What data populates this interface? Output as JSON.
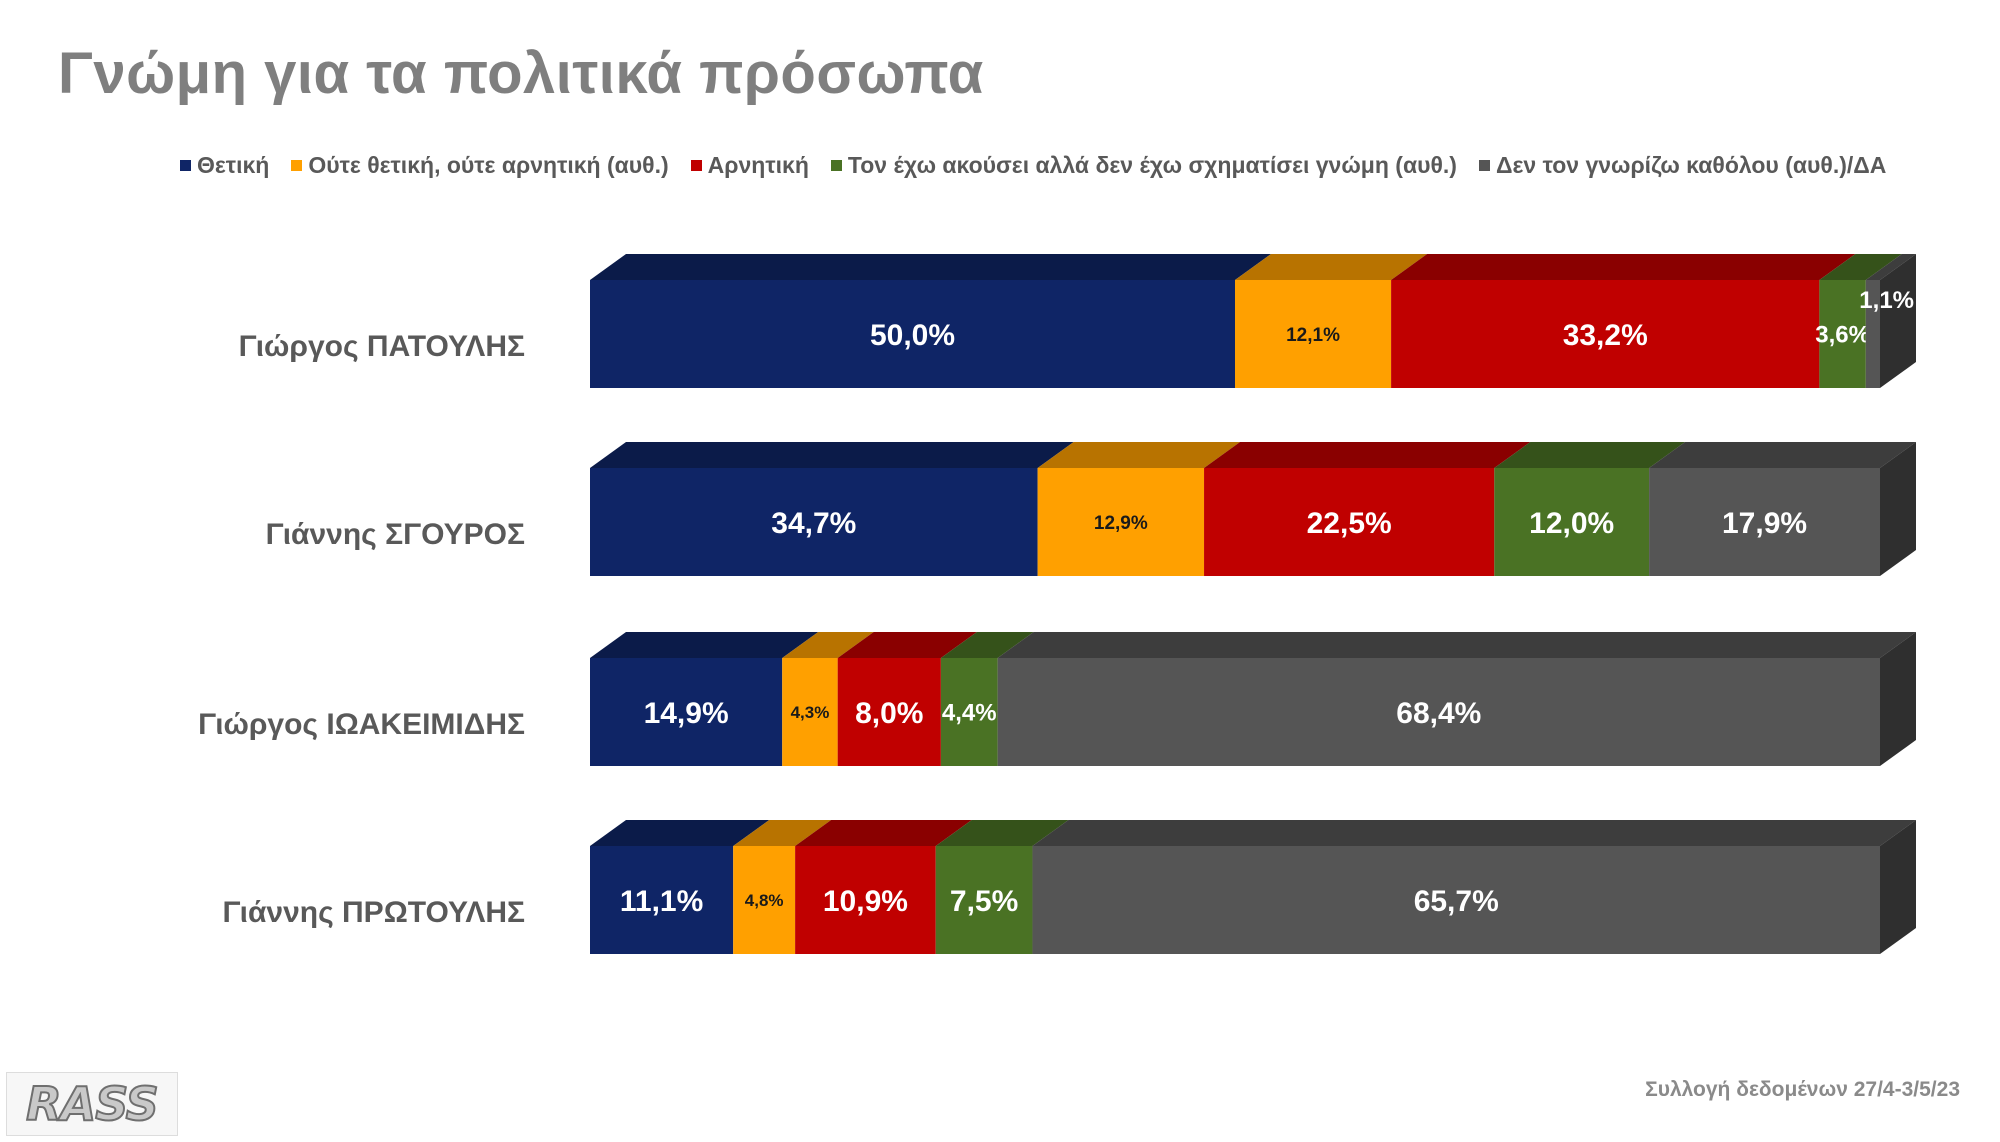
{
  "chart_data": {
    "type": "bar",
    "orientation": "horizontal",
    "stacked": true,
    "title": "Γνώμη για τα πολιτικά πρόσωπα",
    "legend_position": "top",
    "categories": [
      "Γιώργος ΠΑΤΟΥΛΗΣ",
      "Γιάννης ΣΓΟΥΡΟΣ",
      "Γιώργος ΙΩΑΚΕΙΜΙΔΗΣ",
      "Γιάννης ΠΡΩΤΟΥΛΗΣ"
    ],
    "series": [
      {
        "name": "Θετική",
        "color": "#0f2566",
        "values": [
          50.0,
          34.7,
          14.9,
          11.1
        ],
        "labels": [
          "50,0%",
          "34,7%",
          "14,9%",
          "11,1%"
        ]
      },
      {
        "name": "Ούτε θετική, ούτε αρνητική (αυθ.)",
        "color": "#ffa000",
        "values": [
          12.1,
          12.9,
          4.3,
          4.8
        ],
        "labels": [
          "12,1%",
          "12,9%",
          "4,3%",
          "4,8%"
        ]
      },
      {
        "name": "Αρνητική",
        "color": "#c00000",
        "values": [
          33.2,
          22.5,
          8.0,
          10.9
        ],
        "labels": [
          "33,2%",
          "22,5%",
          "8,0%",
          "10,9%"
        ]
      },
      {
        "name": "Τον έχω ακούσει αλλά δεν έχω σχηματίσει γνώμη (αυθ.)",
        "color": "#4a7224",
        "values": [
          3.6,
          12.0,
          4.4,
          7.5
        ],
        "labels": [
          "3,6%",
          "12,0%",
          "4,4%",
          "7,5%"
        ]
      },
      {
        "name": "Δεν τον γνωρίζω καθόλου (αυθ.)/ΔΑ",
        "color": "#555555",
        "values": [
          1.1,
          17.9,
          68.4,
          65.7
        ],
        "labels": [
          "1,1%",
          "17,9%",
          "68,4%",
          "65,7%"
        ]
      }
    ]
  },
  "footer": {
    "source_note": "Συλλογή δεδομένων 27/4-3/5/23",
    "logo_text": "RASS"
  }
}
